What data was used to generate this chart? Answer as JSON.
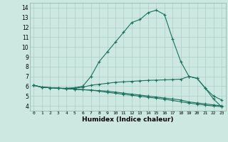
{
  "title": "",
  "xlabel": "Humidex (Indice chaleur)",
  "ylabel": "",
  "bg_color": "#cce8e0",
  "grid_color": "#aacfc8",
  "line_color": "#1a7060",
  "xlim": [
    -0.5,
    23.5
  ],
  "ylim": [
    3.5,
    14.5
  ],
  "xticks": [
    0,
    1,
    2,
    3,
    4,
    5,
    6,
    7,
    8,
    9,
    10,
    11,
    12,
    13,
    14,
    15,
    16,
    17,
    18,
    19,
    20,
    21,
    22,
    23
  ],
  "yticks": [
    4,
    5,
    6,
    7,
    8,
    9,
    10,
    11,
    12,
    13,
    14
  ],
  "curve1_x": [
    0,
    1,
    2,
    3,
    4,
    5,
    6,
    7,
    8,
    9,
    10,
    11,
    12,
    13,
    14,
    15,
    16,
    17,
    18,
    19,
    20,
    21,
    22,
    23
  ],
  "curve1_y": [
    6.1,
    5.9,
    5.85,
    5.8,
    5.8,
    5.85,
    6.0,
    7.0,
    8.5,
    9.5,
    10.5,
    11.5,
    12.5,
    12.8,
    13.5,
    13.75,
    13.3,
    10.8,
    8.5,
    7.0,
    6.8,
    5.8,
    4.7,
    3.9
  ],
  "curve2_x": [
    0,
    1,
    2,
    3,
    4,
    5,
    6,
    7,
    8,
    9,
    10,
    11,
    12,
    13,
    14,
    15,
    16,
    17,
    18,
    19,
    20,
    21,
    22,
    23
  ],
  "curve2_y": [
    6.1,
    5.9,
    5.85,
    5.8,
    5.75,
    5.8,
    5.9,
    6.1,
    6.2,
    6.3,
    6.4,
    6.45,
    6.5,
    6.55,
    6.6,
    6.62,
    6.65,
    6.68,
    6.72,
    7.0,
    6.8,
    5.8,
    5.0,
    4.6
  ],
  "curve3_x": [
    0,
    1,
    2,
    3,
    4,
    5,
    6,
    7,
    8,
    9,
    10,
    11,
    12,
    13,
    14,
    15,
    16,
    17,
    18,
    19,
    20,
    21,
    22,
    23
  ],
  "curve3_y": [
    6.1,
    5.9,
    5.85,
    5.8,
    5.75,
    5.7,
    5.65,
    5.6,
    5.55,
    5.5,
    5.4,
    5.3,
    5.2,
    5.1,
    5.0,
    4.9,
    4.8,
    4.7,
    4.6,
    4.4,
    4.3,
    4.2,
    4.1,
    4.0
  ],
  "curve4_x": [
    0,
    1,
    2,
    3,
    4,
    5,
    6,
    7,
    8,
    9,
    10,
    11,
    12,
    13,
    14,
    15,
    16,
    17,
    18,
    19,
    20,
    21,
    22,
    23
  ],
  "curve4_y": [
    6.1,
    5.9,
    5.85,
    5.8,
    5.75,
    5.7,
    5.65,
    5.6,
    5.5,
    5.38,
    5.28,
    5.18,
    5.08,
    4.98,
    4.88,
    4.78,
    4.68,
    4.55,
    4.42,
    4.28,
    4.18,
    4.08,
    3.98,
    3.92
  ]
}
